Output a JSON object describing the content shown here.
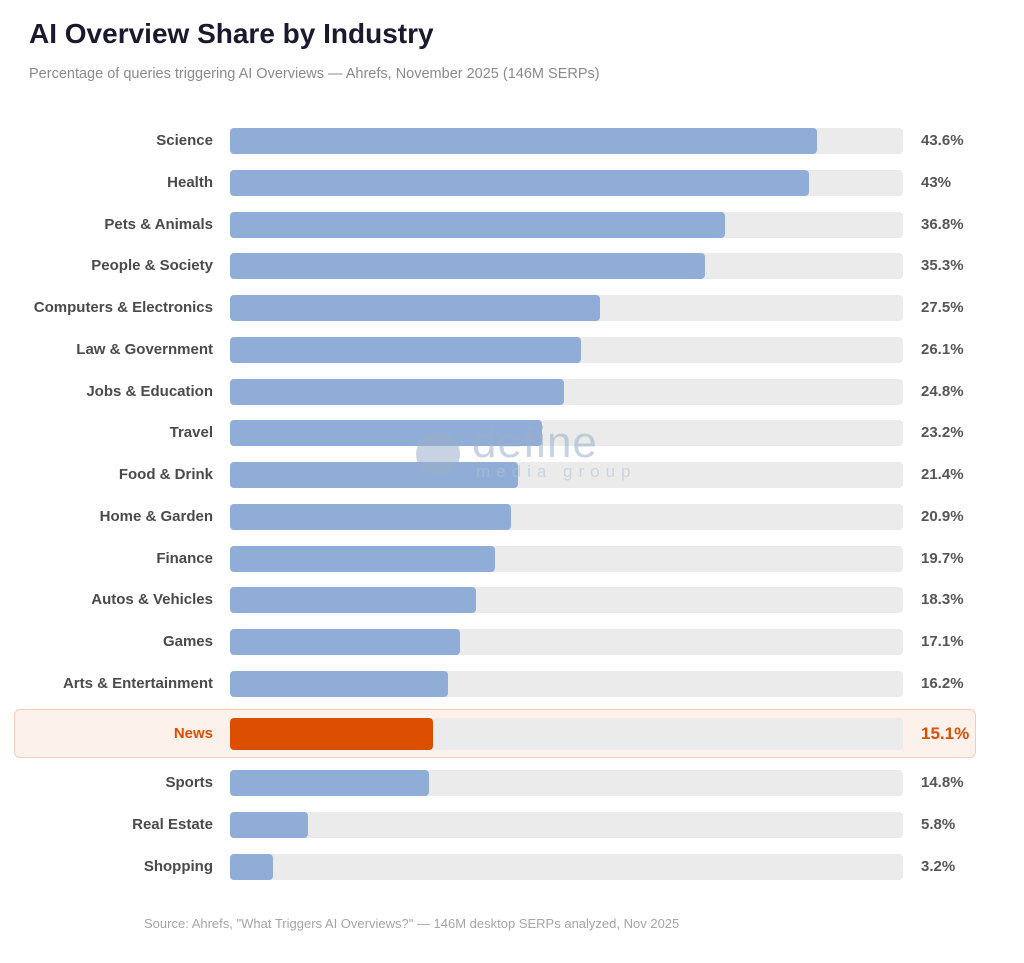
{
  "chart_data": {
    "type": "bar",
    "orientation": "horizontal",
    "title": "AI Overview Share by Industry",
    "subtitle": "Percentage of queries triggering AI Overviews — Ahrefs, November 2025 (146M SERPs)",
    "categories": [
      "Science",
      "Health",
      "Pets & Animals",
      "People & Society",
      "Computers & Electronics",
      "Law & Government",
      "Jobs & Education",
      "Travel",
      "Food & Drink",
      "Home & Garden",
      "Finance",
      "Autos & Vehicles",
      "Games",
      "Arts & Entertainment",
      "News",
      "Sports",
      "Real Estate",
      "Shopping"
    ],
    "values": [
      43.6,
      43,
      36.8,
      35.3,
      27.5,
      26.1,
      24.8,
      23.2,
      21.4,
      20.9,
      19.7,
      18.3,
      17.1,
      16.2,
      15.1,
      14.8,
      5.8,
      3.2
    ],
    "data_labels": [
      "43.6%",
      "43%",
      "36.8%",
      "35.3%",
      "27.5%",
      "26.1%",
      "24.8%",
      "23.2%",
      "21.4%",
      "20.9%",
      "19.7%",
      "18.3%",
      "17.1%",
      "16.2%",
      "15.1%",
      "14.8%",
      "5.8%",
      "3.2%"
    ],
    "highlight": "News",
    "xlim": [
      0,
      50
    ],
    "grid": false,
    "colors": {
      "bar": "#8fadd6",
      "highlight": "#dd4f00",
      "track": "#ebebeb",
      "highlight_bg": "#fdf1ec"
    },
    "source": "Source: Ahrefs, \"What Triggers AI Overviews?\" — 146M desktop SERPs analyzed, Nov 2025"
  },
  "watermark": {
    "brand": "define",
    "tagline": "media group"
  }
}
